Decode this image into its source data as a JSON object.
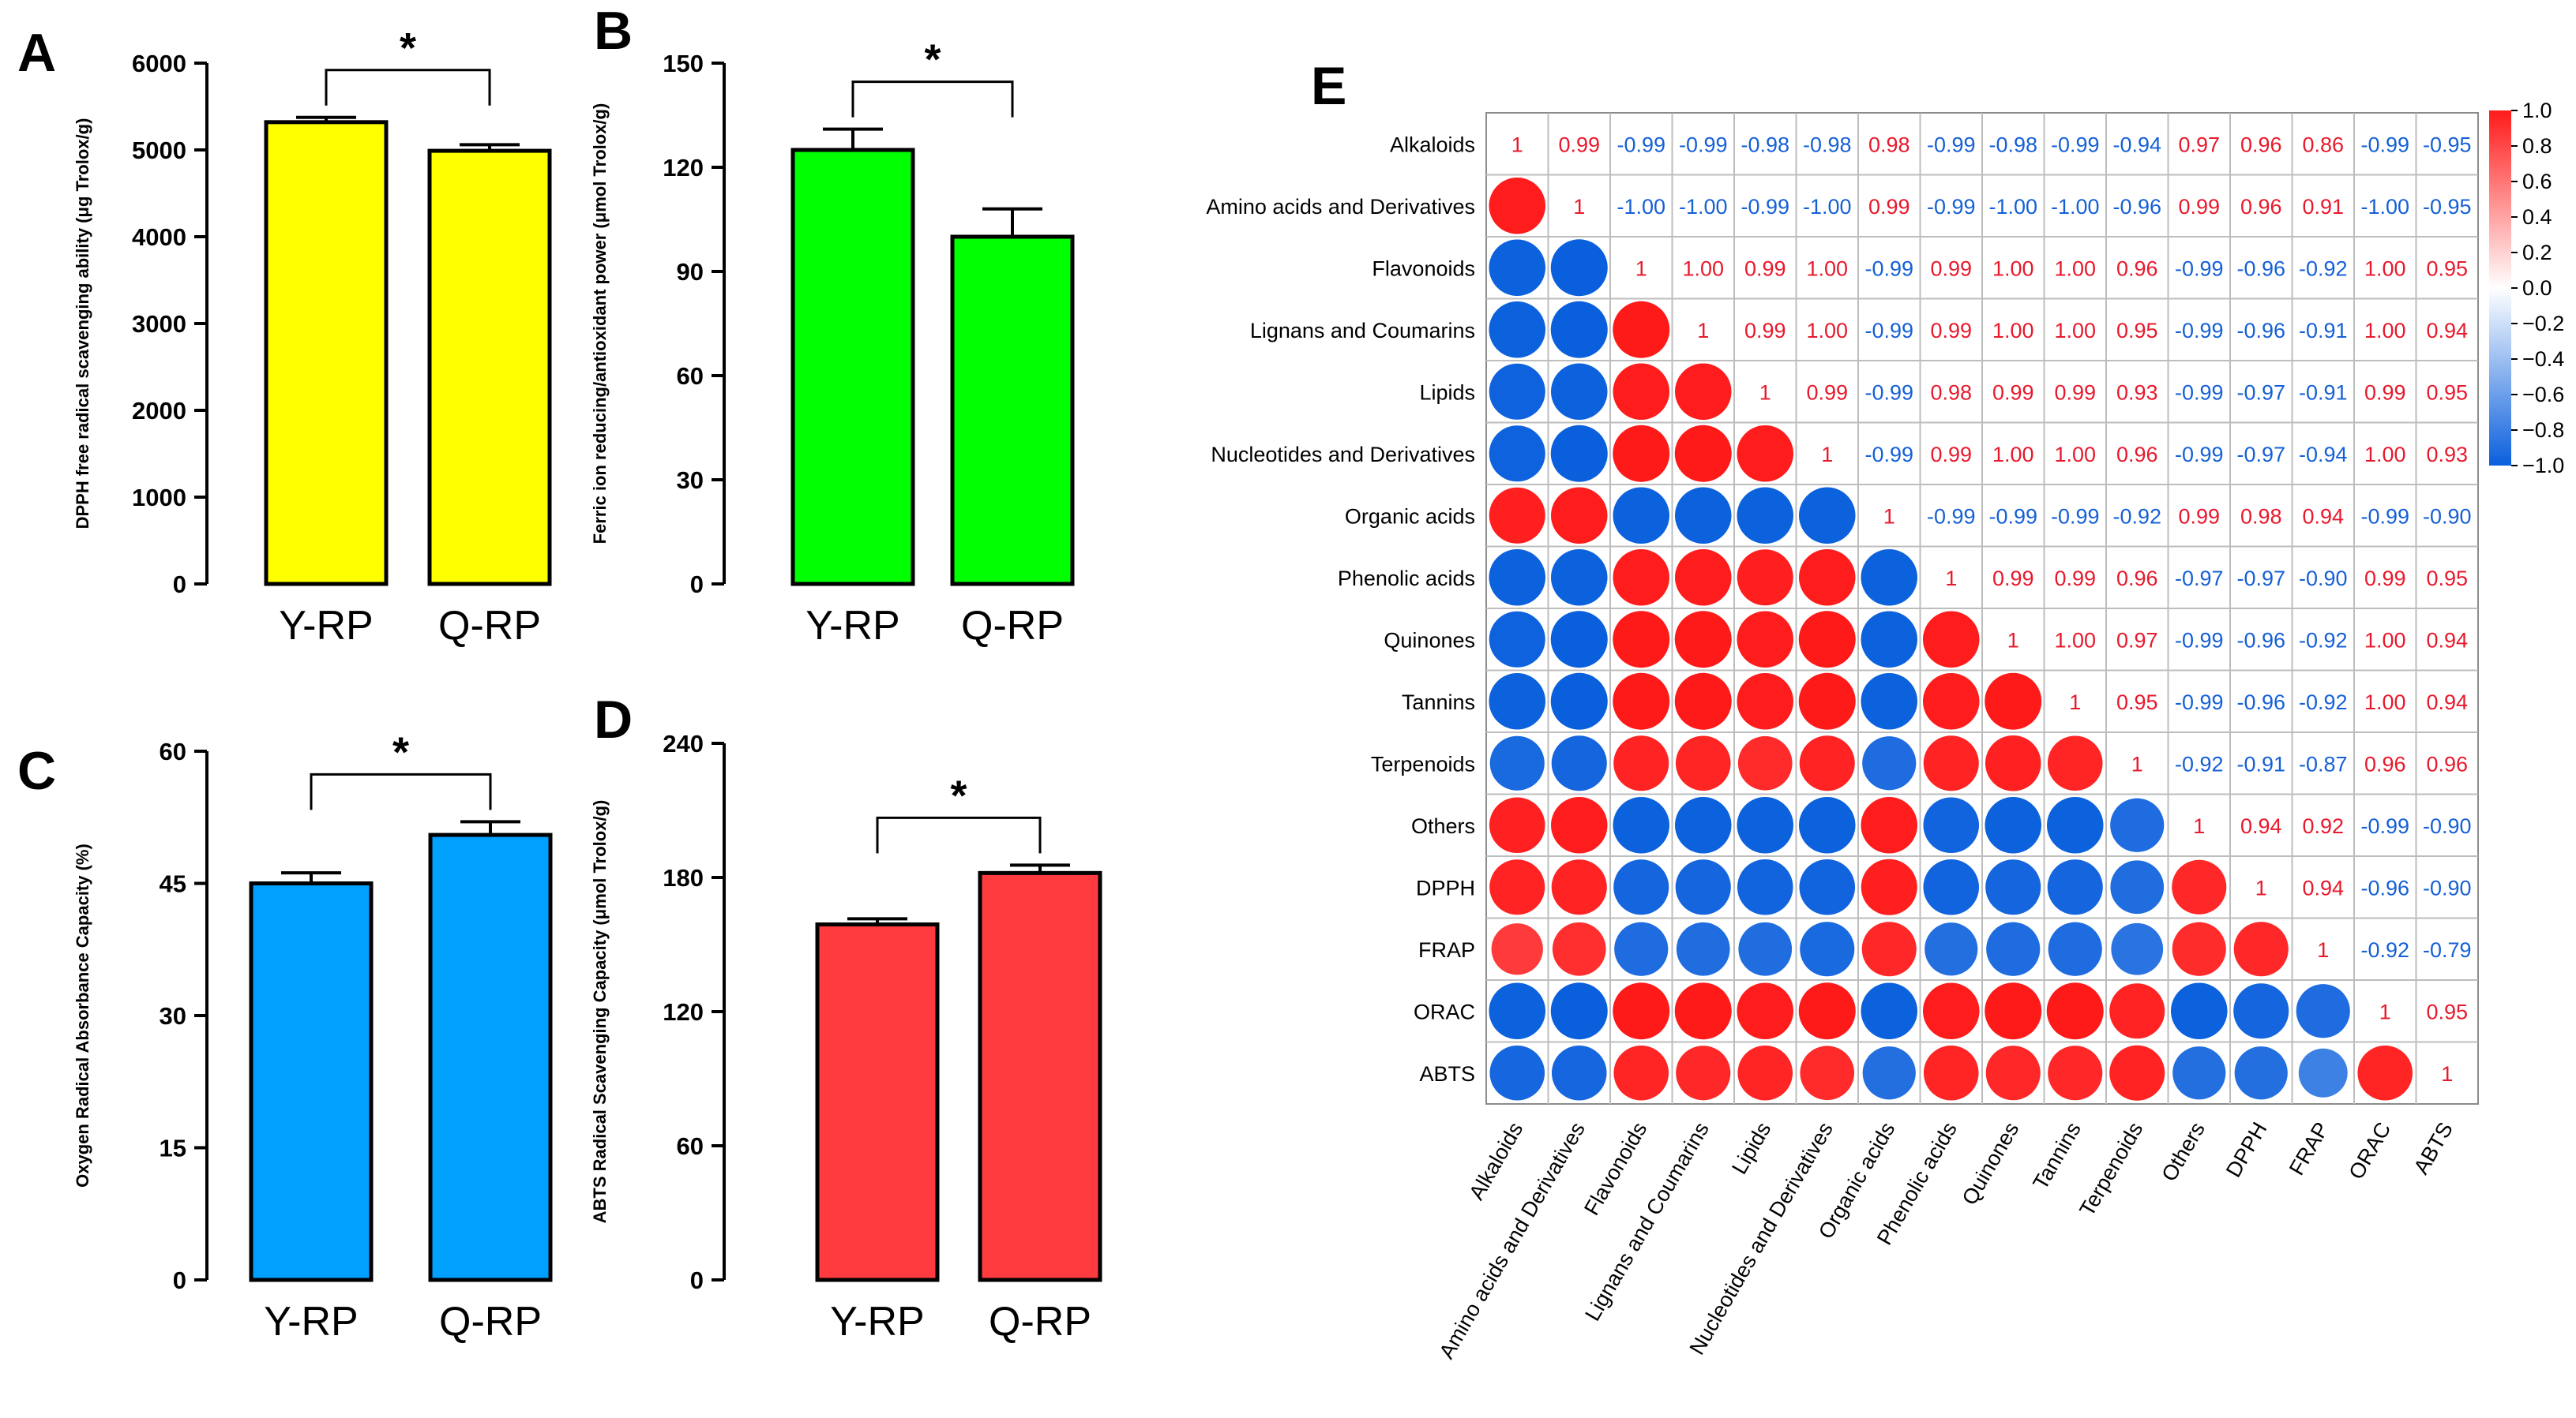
{
  "chart_data": [
    {
      "panel": "A",
      "type": "bar",
      "categories": [
        "Y-RP",
        "Q-RP"
      ],
      "values": [
        5320,
        4990
      ],
      "errors": [
        55,
        70
      ],
      "ylabel": "DPPH free radical scavenging ability (μg Trolox/g)",
      "ylim": [
        0,
        6000
      ],
      "yticks": [
        "0",
        "1000",
        "2000",
        "3000",
        "4000",
        "5000",
        "6000"
      ],
      "significance": "*",
      "bar_color": "#FFFF00"
    },
    {
      "panel": "B",
      "type": "bar",
      "categories": [
        "Y-RP",
        "Q-RP"
      ],
      "values": [
        125,
        100
      ],
      "errors": [
        6,
        8
      ],
      "ylabel": "Ferric ion reducing/antioxidant power (μmol Trolox/g)",
      "ylim": [
        0,
        150
      ],
      "yticks": [
        "0",
        "30",
        "60",
        "90",
        "120",
        "150"
      ],
      "significance": "*",
      "bar_color": "#00FF00"
    },
    {
      "panel": "C",
      "type": "bar",
      "categories": [
        "Y-RP",
        "Q-RP"
      ],
      "values": [
        45,
        50.5
      ],
      "errors": [
        1.2,
        1.5
      ],
      "ylabel": "Oxygen Radical Absorbance Capacity (%)",
      "ylim": [
        0,
        60
      ],
      "yticks": [
        "0",
        "15",
        "30",
        "45",
        "60"
      ],
      "significance": "*",
      "bar_color": "#00A0FF"
    },
    {
      "panel": "D",
      "type": "bar",
      "categories": [
        "Y-RP",
        "Q-RP"
      ],
      "values": [
        159,
        182
      ],
      "errors": [
        2.5,
        3.5
      ],
      "ylabel": "ABTS Radical Scavenging Capacity (μmol Trolox/g)",
      "ylim": [
        0,
        240
      ],
      "yticks": [
        "0",
        "60",
        "120",
        "180",
        "240"
      ],
      "significance": "*",
      "bar_color": "#FF3B3F"
    },
    {
      "panel": "E",
      "type": "heatmap",
      "labels": [
        "Alkaloids",
        "Amino acids and Derivatives",
        "Flavonoids",
        "Lignans and Coumarins",
        "Lipids",
        "Nucleotides and Derivatives",
        "Organic acids",
        "Phenolic acids",
        "Quinones",
        "Tannins",
        "Terpenoids",
        "Others",
        "DPPH",
        "FRAP",
        "ORAC",
        "ABTS"
      ],
      "matrix": [
        [
          "1",
          "0.99",
          "-0.99",
          "-0.99",
          "-0.98",
          "-0.98",
          "0.98",
          "-0.99",
          "-0.98",
          "-0.99",
          "-0.94",
          "0.97",
          "0.96",
          "0.86",
          "-0.99",
          "-0.95"
        ],
        [
          "0.99",
          "1",
          "-1.00",
          "-1.00",
          "-0.99",
          "-1.00",
          "0.99",
          "-0.99",
          "-1.00",
          "-1.00",
          "-0.96",
          "0.99",
          "0.96",
          "0.91",
          "-1.00",
          "-0.95"
        ],
        [
          "-0.99",
          "-1.00",
          "1",
          "1.00",
          "0.99",
          "1.00",
          "-0.99",
          "0.99",
          "1.00",
          "1.00",
          "0.96",
          "-0.99",
          "-0.96",
          "-0.92",
          "1.00",
          "0.95"
        ],
        [
          "-0.99",
          "-1.00",
          "1.00",
          "1",
          "0.99",
          "1.00",
          "-0.99",
          "0.99",
          "1.00",
          "1.00",
          "0.95",
          "-0.99",
          "-0.96",
          "-0.91",
          "1.00",
          "0.94"
        ],
        [
          "-0.98",
          "-0.99",
          "0.99",
          "0.99",
          "1",
          "0.99",
          "-0.99",
          "0.98",
          "0.99",
          "0.99",
          "0.93",
          "-0.99",
          "-0.97",
          "-0.91",
          "0.99",
          "0.95"
        ],
        [
          "-0.98",
          "-1.00",
          "1.00",
          "1.00",
          "0.99",
          "1",
          "-0.99",
          "0.99",
          "1.00",
          "1.00",
          "0.96",
          "-0.99",
          "-0.97",
          "-0.94",
          "1.00",
          "0.93"
        ],
        [
          "0.98",
          "0.99",
          "-0.99",
          "-0.99",
          "-0.99",
          "-0.99",
          "1",
          "-0.99",
          "-0.99",
          "-0.99",
          "-0.92",
          "0.99",
          "0.98",
          "0.94",
          "-0.99",
          "-0.90"
        ],
        [
          "-0.99",
          "-0.99",
          "0.99",
          "0.99",
          "0.98",
          "0.99",
          "-0.99",
          "1",
          "0.99",
          "0.99",
          "0.96",
          "-0.97",
          "-0.97",
          "-0.90",
          "0.99",
          "0.95"
        ],
        [
          "-0.98",
          "-1.00",
          "1.00",
          "1.00",
          "0.99",
          "1.00",
          "-0.99",
          "0.99",
          "1",
          "1.00",
          "0.97",
          "-0.99",
          "-0.96",
          "-0.92",
          "1.00",
          "0.94"
        ],
        [
          "-0.99",
          "-1.00",
          "1.00",
          "1.00",
          "0.99",
          "1.00",
          "-0.99",
          "0.99",
          "1.00",
          "1",
          "0.95",
          "-0.99",
          "-0.96",
          "-0.92",
          "1.00",
          "0.94"
        ],
        [
          "-0.94",
          "-0.96",
          "0.96",
          "0.95",
          "0.93",
          "0.96",
          "-0.92",
          "0.96",
          "0.97",
          "0.95",
          "1",
          "-0.92",
          "-0.91",
          "-0.87",
          "0.96",
          "0.96"
        ],
        [
          "0.97",
          "0.99",
          "-0.99",
          "-0.99",
          "-0.99",
          "-0.99",
          "0.99",
          "-0.97",
          "-0.99",
          "-0.99",
          "-0.92",
          "1",
          "0.94",
          "0.92",
          "-0.99",
          "-0.90"
        ],
        [
          "0.96",
          "0.96",
          "-0.96",
          "-0.96",
          "-0.97",
          "-0.97",
          "0.98",
          "-0.97",
          "-0.96",
          "-0.96",
          "-0.91",
          "0.94",
          "1",
          "0.94",
          "-0.96",
          "-0.90"
        ],
        [
          "0.86",
          "0.91",
          "-0.92",
          "-0.91",
          "-0.91",
          "-0.94",
          "0.94",
          "-0.90",
          "-0.92",
          "-0.92",
          "-0.87",
          "0.92",
          "0.94",
          "1",
          "-0.92",
          "-0.79"
        ],
        [
          "-0.99",
          "-1.00",
          "1.00",
          "1.00",
          "0.99",
          "1.00",
          "-0.99",
          "0.99",
          "1.00",
          "1.00",
          "0.96",
          "-0.99",
          "-0.96",
          "-0.92",
          "1",
          "0.95"
        ],
        [
          "-0.95",
          "-0.95",
          "0.95",
          "0.94",
          "0.95",
          "0.93",
          "-0.90",
          "0.95",
          "0.94",
          "0.94",
          "0.96",
          "-0.90",
          "-0.90",
          "-0.79",
          "0.95",
          "1"
        ]
      ],
      "colorbar": {
        "range": [
          -1.0,
          1.0
        ],
        "ticks": [
          "1.0",
          "0.8",
          "0.6",
          "0.4",
          "0.2",
          "0.0",
          "−0.2",
          "−0.4",
          "−0.6",
          "−0.8",
          "−1.0"
        ],
        "positive_color": "#FF1A1A",
        "negative_color": "#0A5FDD",
        "neutral_color": "#FFFFFF"
      }
    }
  ]
}
